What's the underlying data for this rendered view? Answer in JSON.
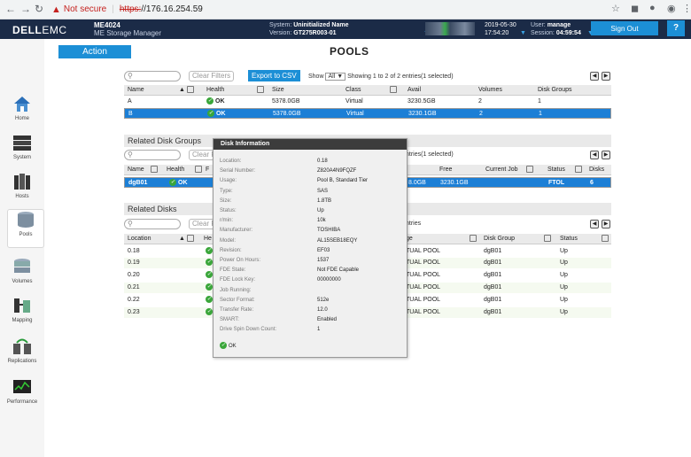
{
  "browser": {
    "not_secure": "Not secure",
    "separator": "|",
    "url_scheme": "https:",
    "url_rest": "//176.16.254.59"
  },
  "header": {
    "logo_bold": "DELL",
    "logo_rest": "EMC",
    "model": "ME4024",
    "model_sub": "ME Storage Manager",
    "system_label": "System:",
    "system_value": "Uninitialized Name",
    "version_label": "Version:",
    "version_value": "GT275R003-01",
    "date": "2019-05-30",
    "time": "17:54:20",
    "user_label": "User:",
    "user_value": "manage",
    "session_label": "Session:",
    "session_value": "04:59:54",
    "signout": "Sign Out",
    "help": "?"
  },
  "sidebar": {
    "items": [
      {
        "label": "Home",
        "icon": "home-icon"
      },
      {
        "label": "System",
        "icon": "system-icon"
      },
      {
        "label": "Hosts",
        "icon": "hosts-icon"
      },
      {
        "label": "Pools",
        "icon": "pools-icon"
      },
      {
        "label": "Volumes",
        "icon": "volumes-icon"
      },
      {
        "label": "Mapping",
        "icon": "mapping-icon"
      },
      {
        "label": "Replications",
        "icon": "replications-icon"
      },
      {
        "label": "Performance",
        "icon": "performance-icon"
      }
    ]
  },
  "action": "Action",
  "page_title": "POOLS",
  "pools": {
    "clear_filters": "Clear Filters",
    "export": "Export to CSV",
    "show_label": "Show",
    "show_value": "All ▼",
    "summary": "Showing 1 to 2 of 2 entries(1 selected)",
    "columns": [
      "Name",
      "Health",
      "Size",
      "Class",
      "Avail",
      "Volumes",
      "Disk Groups"
    ],
    "rows": [
      {
        "name": "A",
        "health": "OK",
        "size": "5378.0GB",
        "class": "Virtual",
        "avail": "3230.5GB",
        "volumes": "2",
        "disk_groups": "1"
      },
      {
        "name": "B",
        "health": "OK",
        "size": "5378.0GB",
        "class": "Virtual",
        "avail": "3230.1GB",
        "volumes": "2",
        "disk_groups": "1"
      }
    ]
  },
  "related_groups": {
    "title": "Related Disk Groups",
    "clear": "Clear F",
    "summary": "ntries(1 selected)",
    "columns": [
      "Name",
      "Health",
      "F",
      "",
      "Free",
      "Current Job",
      "Status",
      "Disks"
    ],
    "row": {
      "name": "dgB01",
      "health": "OK",
      "size": "8.0GB",
      "free": "3230.1GB",
      "job": "",
      "status": "FTOL",
      "disks": "6"
    }
  },
  "related_disks": {
    "title": "Related Disks",
    "clear": "Clear F",
    "summary": "ntries",
    "columns": [
      "Location",
      "He",
      "ge",
      "Disk Group",
      "Status"
    ],
    "rows": [
      {
        "loc": "0.18",
        "usage": "TUAL POOL",
        "group": "dgB01",
        "status": "Up"
      },
      {
        "loc": "0.19",
        "usage": "TUAL POOL",
        "group": "dgB01",
        "status": "Up"
      },
      {
        "loc": "0.20",
        "usage": "TUAL POOL",
        "group": "dgB01",
        "status": "Up"
      },
      {
        "loc": "0.21",
        "usage": "TUAL POOL",
        "group": "dgB01",
        "status": "Up"
      },
      {
        "loc": "0.22",
        "usage": "TUAL POOL",
        "group": "dgB01",
        "status": "Up"
      },
      {
        "loc": "0.23",
        "usage": "TUAL POOL",
        "group": "dgB01",
        "status": "Up"
      }
    ]
  },
  "disk_info": {
    "title": "Disk Information",
    "fields": [
      {
        "k": "Location:",
        "v": "0.18"
      },
      {
        "k": "Serial Number:",
        "v": "Z820A4N9FQZF"
      },
      {
        "k": "Usage:",
        "v": "Pool B, Standard Tier"
      },
      {
        "k": "Type:",
        "v": "SAS"
      },
      {
        "k": "Size:",
        "v": "1.8TB"
      },
      {
        "k": "Status:",
        "v": "Up"
      },
      {
        "k": "r/min:",
        "v": "10k"
      },
      {
        "k": "Manufacturer:",
        "v": "TOSHIBA"
      },
      {
        "k": "Model:",
        "v": "AL15SEB18EQY"
      },
      {
        "k": "Revision:",
        "v": "EF03"
      },
      {
        "k": "Power On Hours:",
        "v": "1537"
      },
      {
        "k": "FDE State:",
        "v": "Not FDE Capable"
      },
      {
        "k": "FDE Lock Key:",
        "v": "00000000"
      },
      {
        "k": "Job Running:",
        "v": ""
      },
      {
        "k": "Sector Format:",
        "v": "512e"
      },
      {
        "k": "Transfer Rate:",
        "v": "12.0"
      },
      {
        "k": "SMART:",
        "v": "Enabled"
      },
      {
        "k": "Drive Spin Down Count:",
        "v": "1"
      }
    ],
    "status": "OK"
  }
}
